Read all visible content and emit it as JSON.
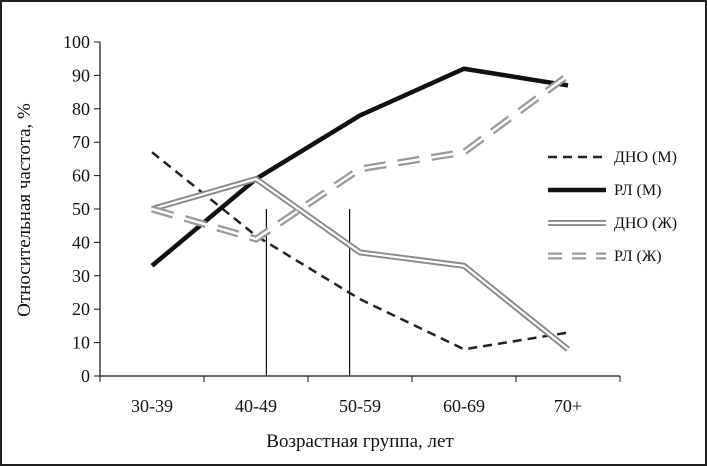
{
  "chart_data": {
    "type": "line",
    "xlabel": "Возрастная группа, лет",
    "ylabel": "Относительная частота, %",
    "categories": [
      "30-39",
      "40-49",
      "50-59",
      "60-69",
      "70+"
    ],
    "ylim": [
      0,
      100
    ],
    "yticks": [
      0,
      10,
      20,
      30,
      40,
      50,
      60,
      70,
      80,
      90,
      100
    ],
    "grid": false,
    "legend_position": "right",
    "series": [
      {
        "name": "ДНО (М)",
        "values": [
          67,
          42,
          23,
          8,
          13
        ],
        "style": "dashed-black",
        "color": "#222222"
      },
      {
        "name": "РЛ (М)",
        "values": [
          33,
          59,
          78,
          92,
          87
        ],
        "style": "solid-thick-black",
        "color": "#111111"
      },
      {
        "name": "ДНО (Ж)",
        "values": [
          50,
          59,
          37,
          33,
          8
        ],
        "style": "double-gray",
        "color": "#888888"
      },
      {
        "name": "РЛ (Ж)",
        "values": [
          50,
          41,
          62,
          67,
          90
        ],
        "style": "dashed-double-gray",
        "color": "#999999"
      }
    ],
    "vertical_markers_x": [
      1.6,
      2.4
    ]
  }
}
